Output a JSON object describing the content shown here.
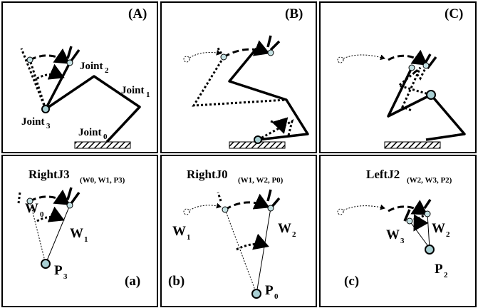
{
  "top_panels": [
    {
      "label": "(A)"
    },
    {
      "label": "(B)"
    },
    {
      "label": "(C)"
    }
  ],
  "joints": [
    {
      "base": "Joint",
      "sub": "2"
    },
    {
      "base": "Joint",
      "sub": "1"
    },
    {
      "base": "Joint",
      "sub": "3"
    },
    {
      "base": "Joint",
      "sub": "0"
    }
  ],
  "bottom_panels": [
    {
      "title": "RightJ3",
      "title_sub": "(W0, W1, P3)",
      "labels": [
        {
          "base": "W",
          "sub": "0"
        },
        {
          "base": "W",
          "sub": "1"
        },
        {
          "base": "P",
          "sub": "3"
        }
      ],
      "tag": "(a)"
    },
    {
      "title": "RightJ0",
      "title_sub": "(W1, W2, P0)",
      "labels": [
        {
          "base": "W",
          "sub": "1"
        },
        {
          "base": "W",
          "sub": "2"
        },
        {
          "base": "P",
          "sub": "0"
        }
      ],
      "tag": "(b)"
    },
    {
      "title": "LeftJ2",
      "title_sub": "(W2, W3, P2)",
      "labels": [
        {
          "base": "W",
          "sub": "2"
        },
        {
          "base": "W",
          "sub": "3"
        },
        {
          "base": "P",
          "sub": "2"
        }
      ],
      "tag": "(c)"
    }
  ]
}
